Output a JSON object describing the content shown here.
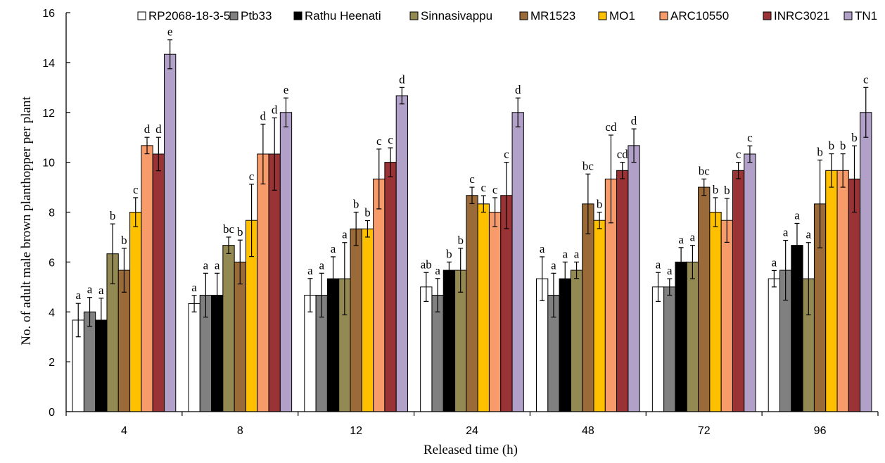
{
  "chart_data": {
    "type": "bar",
    "xlabel": "Released time (h)",
    "ylabel": "No. of adult male brown planthopper per plant",
    "ylim": [
      0,
      16
    ],
    "yticks": [
      0,
      2,
      4,
      6,
      8,
      10,
      12,
      14,
      16
    ],
    "categories": [
      "4",
      "8",
      "12",
      "24",
      "48",
      "72",
      "96"
    ],
    "legend_position": "top-right",
    "series": [
      {
        "name": "RP2068-18-3-5",
        "color": "#ffffff",
        "values": [
          3.67,
          4.33,
          4.67,
          5.0,
          5.33,
          5.0,
          5.33
        ],
        "errors": [
          0.67,
          0.33,
          0.67,
          0.58,
          0.88,
          0.58,
          0.33
        ],
        "labels": [
          "a",
          "a",
          "a",
          "ab",
          "a",
          "a",
          "a"
        ]
      },
      {
        "name": "Ptb33",
        "color": "#808080",
        "values": [
          4.0,
          4.67,
          4.67,
          4.67,
          4.67,
          5.0,
          5.67
        ],
        "errors": [
          0.58,
          0.88,
          0.88,
          0.67,
          0.88,
          0.33,
          1.2
        ],
        "labels": [
          "a",
          "a",
          "a",
          "a",
          "a",
          "a",
          "a"
        ]
      },
      {
        "name": "Rathu Heenati",
        "color": "#000000",
        "values": [
          3.67,
          4.67,
          5.33,
          5.67,
          5.33,
          6.0,
          6.67
        ],
        "errors": [
          0.88,
          0.88,
          0.88,
          0.33,
          0.67,
          0.58,
          0.88
        ],
        "labels": [
          "a",
          "a",
          "a",
          "b",
          "a",
          "a",
          "a"
        ]
      },
      {
        "name": "Sinnasivappu",
        "color": "#938953",
        "values": [
          6.33,
          6.67,
          5.33,
          5.67,
          5.67,
          6.0,
          5.33
        ],
        "errors": [
          1.2,
          0.33,
          1.45,
          0.88,
          0.33,
          0.67,
          1.45
        ],
        "labels": [
          "b",
          "bc",
          "a",
          "b",
          "a",
          "a",
          "a"
        ]
      },
      {
        "name": "MR1523",
        "color": "#9a6a38",
        "values": [
          5.67,
          6.0,
          7.33,
          8.67,
          8.33,
          9.0,
          8.33
        ],
        "errors": [
          0.88,
          0.88,
          0.67,
          0.33,
          1.2,
          0.33,
          1.76
        ],
        "labels": [
          "b",
          "b",
          "b",
          "c",
          "bc",
          "bc",
          "b"
        ]
      },
      {
        "name": "MO1",
        "color": "#ffc000",
        "values": [
          8.0,
          7.67,
          7.33,
          8.33,
          7.67,
          8.0,
          9.67
        ],
        "errors": [
          0.58,
          1.45,
          0.33,
          0.33,
          0.33,
          0.58,
          0.67
        ],
        "labels": [
          "c",
          "c",
          "b",
          "c",
          "b",
          "b",
          "b"
        ]
      },
      {
        "name": "ARC10550",
        "color": "#f79b6b",
        "values": [
          10.67,
          10.33,
          9.33,
          8.0,
          9.33,
          7.67,
          9.67
        ],
        "errors": [
          0.33,
          1.2,
          1.2,
          0.58,
          1.76,
          0.88,
          0.67
        ],
        "labels": [
          "d",
          "d",
          "c",
          "c",
          "cd",
          "b",
          "b"
        ]
      },
      {
        "name": "INRC3021",
        "color": "#993336",
        "values": [
          10.33,
          10.33,
          10.0,
          8.67,
          9.67,
          9.67,
          9.33
        ],
        "errors": [
          0.67,
          1.45,
          0.58,
          1.33,
          0.33,
          0.33,
          1.33
        ],
        "labels": [
          "d",
          "d",
          "c",
          "c",
          "cd",
          "c",
          "b"
        ]
      },
      {
        "name": "TN1",
        "color": "#b1a0c7",
        "values": [
          14.33,
          12.0,
          12.67,
          12.0,
          10.67,
          10.33,
          12.0
        ],
        "errors": [
          0.58,
          0.58,
          0.33,
          0.58,
          0.67,
          0.33,
          1.0
        ],
        "labels": [
          "e",
          "e",
          "d",
          "d",
          "d",
          "c",
          "c"
        ]
      }
    ]
  }
}
